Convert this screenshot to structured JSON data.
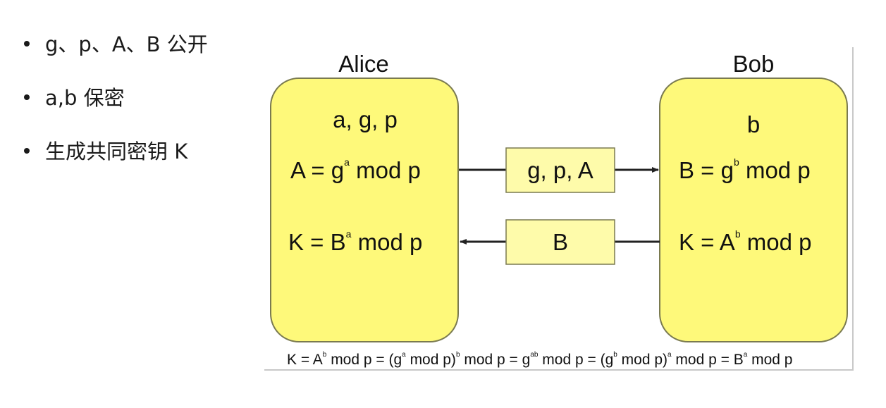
{
  "bullets": [
    {
      "text": "g、p、A、B 公开"
    },
    {
      "text": "a,b 保密"
    },
    {
      "text": "生成共同密钥 K"
    }
  ],
  "diagram": {
    "alice": {
      "title": "Alice",
      "params": "a, g, p",
      "eq1_lhs": "A = g",
      "eq1_sup": "a",
      "eq1_rhs": " mod p",
      "eq2_lhs": "K = B",
      "eq2_sup": "a",
      "eq2_rhs": " mod p"
    },
    "bob": {
      "title": "Bob",
      "params": "b",
      "eq1_lhs": "B = g",
      "eq1_sup": "b",
      "eq1_rhs": " mod p",
      "eq2_lhs": "K = A",
      "eq2_sup": "b",
      "eq2_rhs": " mod p"
    },
    "message_to_bob": "g, p, A",
    "message_to_alice": "B",
    "formula": {
      "t1": "K = A",
      "s1": "b",
      "t2": " mod p = (g",
      "s2": "a",
      "t3": " mod p)",
      "s3": "b",
      "t4": " mod p = g",
      "s4": "ab",
      "t5": " mod p = (g",
      "s5": "b",
      "t6": " mod p)",
      "s6": "a",
      "t7": " mod p = B",
      "s7": "a",
      "t8": " mod p"
    },
    "colors": {
      "box_fill": "#fef97a",
      "box_stroke": "#7a7a50",
      "line": "#222222",
      "text": "#111111"
    }
  }
}
